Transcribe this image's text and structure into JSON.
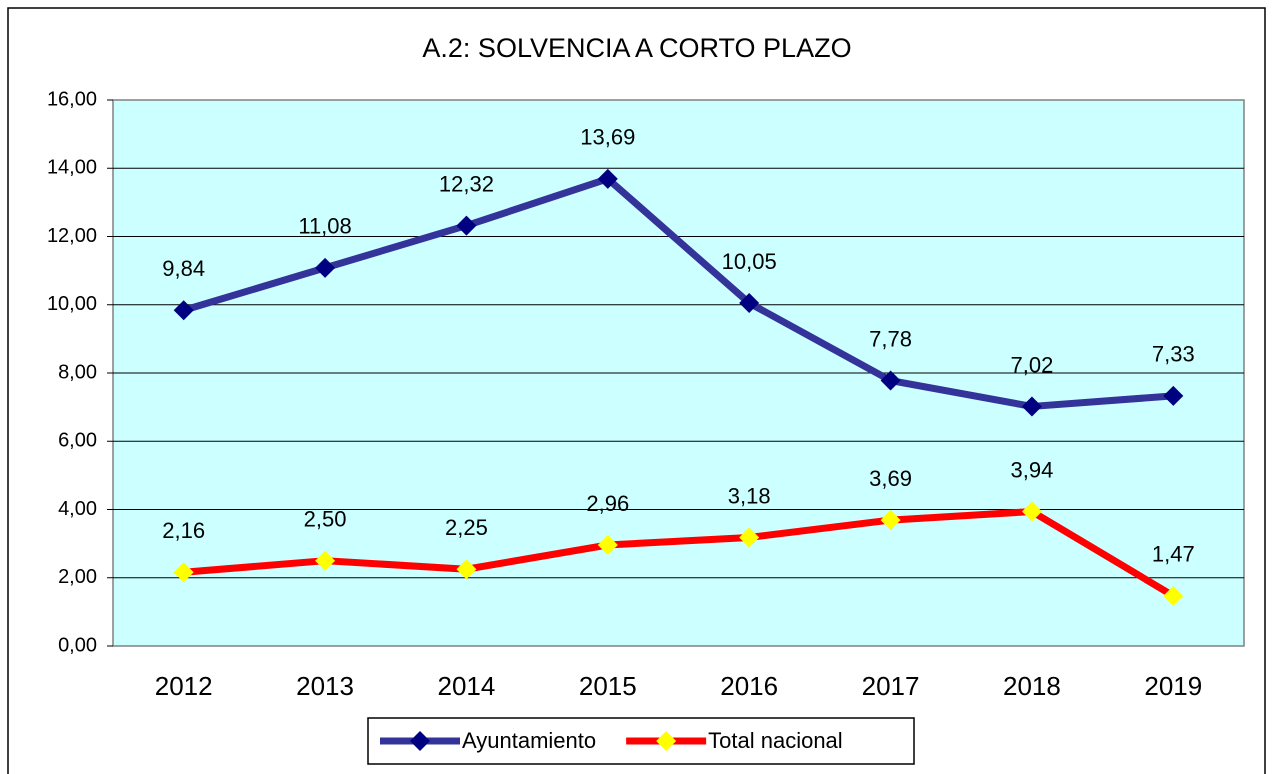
{
  "chart_data": {
    "type": "line",
    "title": "A.2: SOLVENCIA A CORTO PLAZO",
    "categories": [
      "2012",
      "2013",
      "2014",
      "2015",
      "2016",
      "2017",
      "2018",
      "2019"
    ],
    "series": [
      {
        "name": "Ayuntamiento",
        "color": "#333399",
        "marker_color": "#000080",
        "values": [
          9.84,
          11.08,
          12.32,
          13.69,
          10.05,
          7.78,
          7.02,
          7.33
        ],
        "value_labels": [
          "9,84",
          "11,08",
          "12,32",
          "13,69",
          "10,05",
          "7,78",
          "7,02",
          "7,33"
        ]
      },
      {
        "name": "Total nacional",
        "color": "#ff0000",
        "marker_color": "#ffff00",
        "values": [
          2.16,
          2.5,
          2.25,
          2.96,
          3.18,
          3.69,
          3.94,
          1.47
        ],
        "value_labels": [
          "2,16",
          "2,50",
          "2,25",
          "2,96",
          "3,18",
          "3,69",
          "3,94",
          "1,47"
        ]
      }
    ],
    "ylim": [
      0,
      16
    ],
    "yticks": [
      {
        "value": 0,
        "label": "0,00"
      },
      {
        "value": 2,
        "label": "2,00"
      },
      {
        "value": 4,
        "label": "4,00"
      },
      {
        "value": 6,
        "label": "6,00"
      },
      {
        "value": 8,
        "label": "8,00"
      },
      {
        "value": 10,
        "label": "10,00"
      },
      {
        "value": 12,
        "label": "12,00"
      },
      {
        "value": 14,
        "label": "14,00"
      },
      {
        "value": 16,
        "label": "16,00"
      }
    ],
    "grid": true,
    "plot_background": "#ccffff",
    "legend": "bottom"
  }
}
